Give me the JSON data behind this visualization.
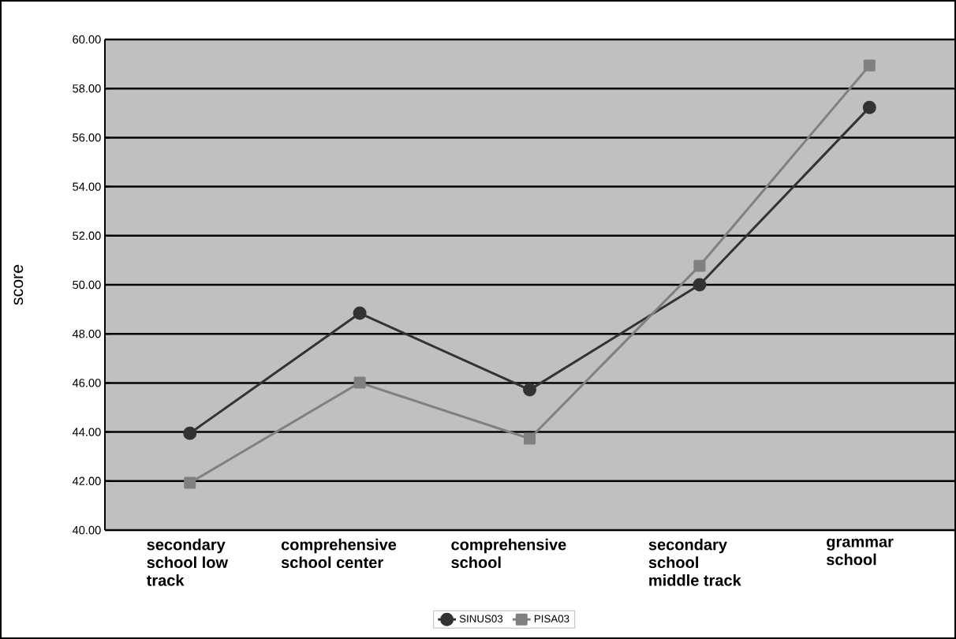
{
  "chart_data": {
    "type": "line",
    "ylabel": "score",
    "categories": [
      "secondary school low track",
      "comprehensive school center",
      "comprehensive school",
      "secondary school middle track",
      "grammar school"
    ],
    "series": [
      {
        "name": "SINUS03",
        "color": "#333333",
        "marker": "circle",
        "values": [
          43.95,
          48.84,
          45.72,
          50.0,
          57.23
        ]
      },
      {
        "name": "PISA03",
        "color": "#808080",
        "marker": "square",
        "values": [
          41.93,
          46.01,
          43.73,
          50.77,
          58.94
        ]
      }
    ],
    "ylim": [
      40,
      60
    ],
    "yticks": [
      {
        "value": 40,
        "label": "40.00"
      },
      {
        "value": 42,
        "label": "42.00"
      },
      {
        "value": 44,
        "label": "44.00"
      },
      {
        "value": 46,
        "label": "46.00"
      },
      {
        "value": 48,
        "label": "48.00"
      },
      {
        "value": 50,
        "label": "50.00"
      },
      {
        "value": 52,
        "label": "52.00"
      },
      {
        "value": 54,
        "label": "54.00"
      },
      {
        "value": 56,
        "label": "56.00"
      },
      {
        "value": 58,
        "label": "58.00"
      },
      {
        "value": 60,
        "label": "60.00"
      }
    ],
    "grid": "y",
    "legend": "bottom",
    "line_style": "solid"
  }
}
